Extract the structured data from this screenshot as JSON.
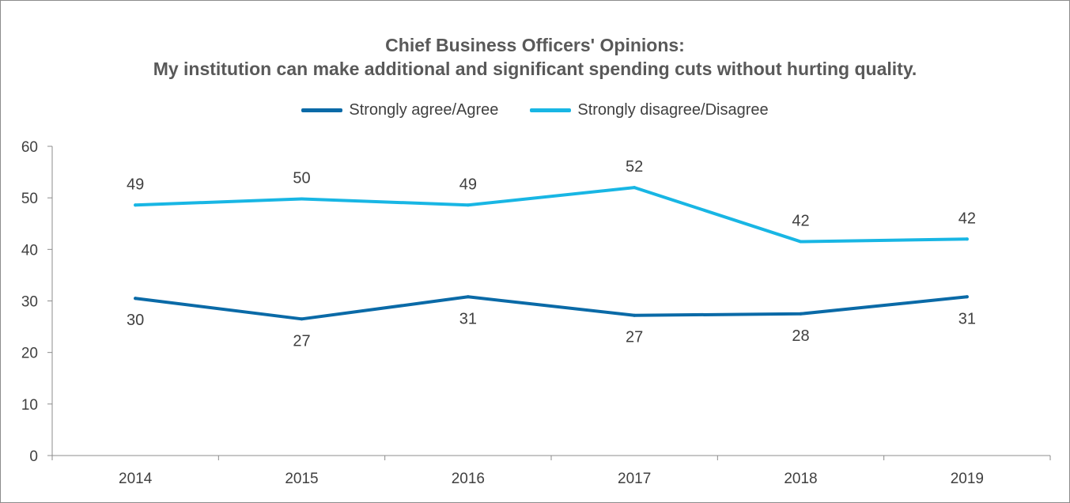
{
  "chart_data": {
    "type": "line",
    "title": "Chief Business Officers' Opinions:",
    "subtitle": "My institution can make additional and significant spending cuts without hurting quality.",
    "categories": [
      "2014",
      "2015",
      "2016",
      "2017",
      "2018",
      "2019"
    ],
    "series": [
      {
        "name": "Strongly agree/Agree",
        "color": "#0a6aa7",
        "values": [
          30.5,
          26.5,
          30.8,
          27.2,
          27.5,
          30.8
        ],
        "labels": [
          "30",
          "27",
          "31",
          "27",
          "28",
          "31"
        ],
        "label_position": "below"
      },
      {
        "name": "Strongly disagree/Disagree",
        "color": "#18b6e4",
        "values": [
          48.6,
          49.8,
          48.6,
          52.0,
          41.5,
          42.0
        ],
        "labels": [
          "49",
          "50",
          "49",
          "52",
          "42",
          "42"
        ],
        "label_position": "above"
      }
    ],
    "ylim": [
      0,
      60
    ],
    "yticks": [
      "0",
      "10",
      "20",
      "30",
      "40",
      "50",
      "60"
    ],
    "xlabel": "",
    "ylabel": "",
    "grid": false,
    "legend": "top-center"
  }
}
